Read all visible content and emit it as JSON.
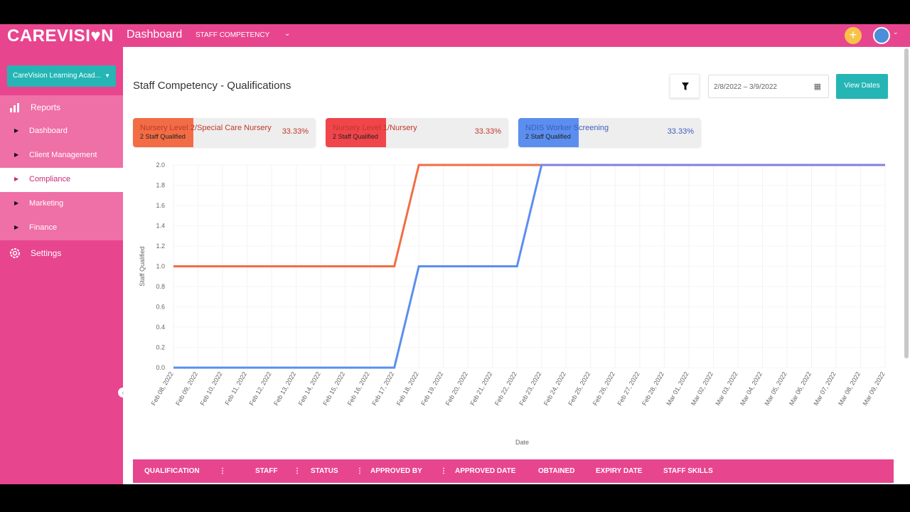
{
  "header": {
    "logo": "CAREVISI♥N",
    "title": "Dashboard",
    "section": "STAFF COMPETENCY"
  },
  "sidebar": {
    "org": "CareVision Learning Acad...",
    "items": [
      {
        "label": "Reports"
      },
      {
        "label": "Dashboard"
      },
      {
        "label": "Client Management"
      },
      {
        "label": "Compliance"
      },
      {
        "label": "Marketing"
      },
      {
        "label": "Finance"
      },
      {
        "label": "Settings"
      }
    ]
  },
  "page": {
    "title": "Staff Competency - Qualifications",
    "date_range": "2/8/2022 – 3/9/2022",
    "view_dates_label": "View Dates"
  },
  "cards": [
    {
      "name": "Nursery Level 2/Special Care Nursery",
      "count": "2 Staff Qualified",
      "pct": "33.33%",
      "color": "#f26d45",
      "text_color": "#c0392b"
    },
    {
      "name": "Nursery Level 1/Nursery",
      "count": "2 Staff Qualified",
      "pct": "33.33%",
      "color": "#f0454b",
      "text_color": "#c0392b"
    },
    {
      "name": "NDIS Worker Screening",
      "count": "2 Staff Qualified",
      "pct": "33.33%",
      "color": "#5b8eef",
      "text_color": "#3b5fc0"
    }
  ],
  "chart_data": {
    "type": "line",
    "xlabel": "Date",
    "ylabel": "Staff Qualified",
    "ylim": [
      0,
      2.0
    ],
    "yticks": [
      "0.0",
      "0.2",
      "0.4",
      "0.6",
      "0.8",
      "1.0",
      "1.2",
      "1.4",
      "1.6",
      "1.8",
      "2.0"
    ],
    "x": [
      "Feb 08, 2022",
      "Feb 09, 2022",
      "Feb 10, 2022",
      "Feb 11, 2022",
      "Feb 12, 2022",
      "Feb 13, 2022",
      "Feb 14, 2022",
      "Feb 15, 2022",
      "Feb 16, 2022",
      "Feb 17, 2022",
      "Feb 18, 2022",
      "Feb 19, 2022",
      "Feb 20, 2022",
      "Feb 21, 2022",
      "Feb 22, 2022",
      "Feb 23, 2022",
      "Feb 24, 2022",
      "Feb 25, 2022",
      "Feb 26, 2022",
      "Feb 27, 2022",
      "Feb 28, 2022",
      "Mar 01, 2022",
      "Mar 02, 2022",
      "Mar 03, 2022",
      "Mar 04, 2022",
      "Mar 05, 2022",
      "Mar 06, 2022",
      "Mar 07, 2022",
      "Mar 08, 2022",
      "Mar 09, 2022"
    ],
    "series": [
      {
        "color": "#f26d45",
        "values": [
          1,
          1,
          1,
          1,
          1,
          1,
          1,
          1,
          1,
          1,
          2,
          2,
          2,
          2,
          2,
          2,
          2,
          2,
          2,
          2,
          2,
          2,
          2,
          2,
          2,
          2,
          2,
          2,
          2,
          2
        ]
      },
      {
        "color": "#5b8eef",
        "values": [
          0,
          0,
          0,
          0,
          0,
          0,
          0,
          0,
          0,
          0,
          1,
          1,
          1,
          1,
          1,
          2,
          2,
          2,
          2,
          2,
          2,
          2,
          2,
          2,
          2,
          2,
          2,
          2,
          2,
          2
        ]
      },
      {
        "color": "#8080e0",
        "values": [
          null,
          null,
          null,
          null,
          null,
          null,
          null,
          null,
          null,
          null,
          null,
          null,
          null,
          null,
          null,
          2,
          2,
          2,
          2,
          2,
          2,
          2,
          2,
          2,
          2,
          2,
          2,
          2,
          2,
          2
        ]
      }
    ]
  },
  "table": {
    "columns": [
      "QUALIFICATION",
      "STAFF",
      "STATUS",
      "APPROVED BY",
      "APPROVED DATE",
      "OBTAINED",
      "EXPIRY DATE",
      "STAFF SKILLS"
    ]
  }
}
